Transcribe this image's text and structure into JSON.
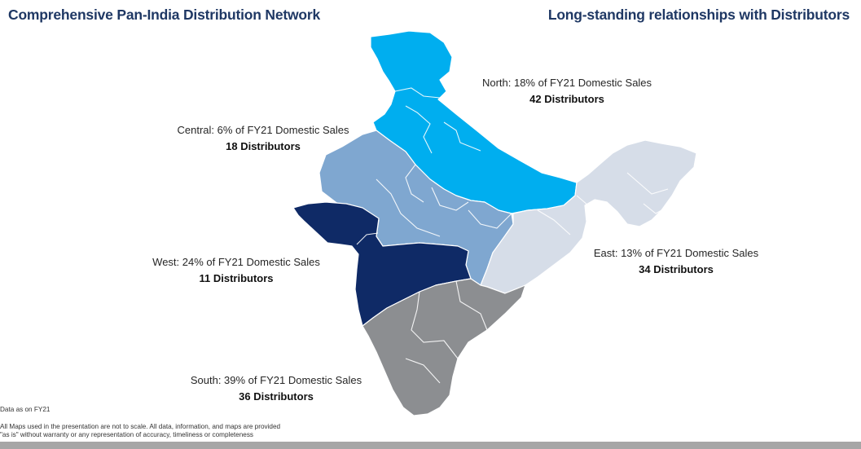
{
  "header": {
    "left_title": "Comprehensive Pan-India Distribution Network",
    "right_title": "Long-standing relationships with Distributors"
  },
  "colors": {
    "north": "#00aeef",
    "central": "#7fa7d0",
    "west": "#0f2a66",
    "east": "#d6dde8",
    "south": "#8c8e91",
    "title": "#1f3864"
  },
  "regions": {
    "north": {
      "share": "North: 18% of FY21 Domestic Sales",
      "distributors": "42 Distributors"
    },
    "central": {
      "share": "Central: 6% of FY21 Domestic Sales",
      "distributors": "18 Distributors"
    },
    "west": {
      "share": "West: 24% of FY21 Domestic Sales",
      "distributors": "11 Distributors"
    },
    "east": {
      "share": "East: 13% of FY21 Domestic Sales",
      "distributors": "34 Distributors"
    },
    "south": {
      "share": "South: 39% of FY21 Domestic Sales",
      "distributors": "36 Distributors"
    }
  },
  "footnotes": {
    "data_note": "Data as on FY21",
    "disclaimer_line1": "All Maps used in the presentation are not to scale. All data, information, and maps are provided",
    "disclaimer_line2": "\"as is\" without warranty or any representation of accuracy, timeliness or completeness"
  }
}
